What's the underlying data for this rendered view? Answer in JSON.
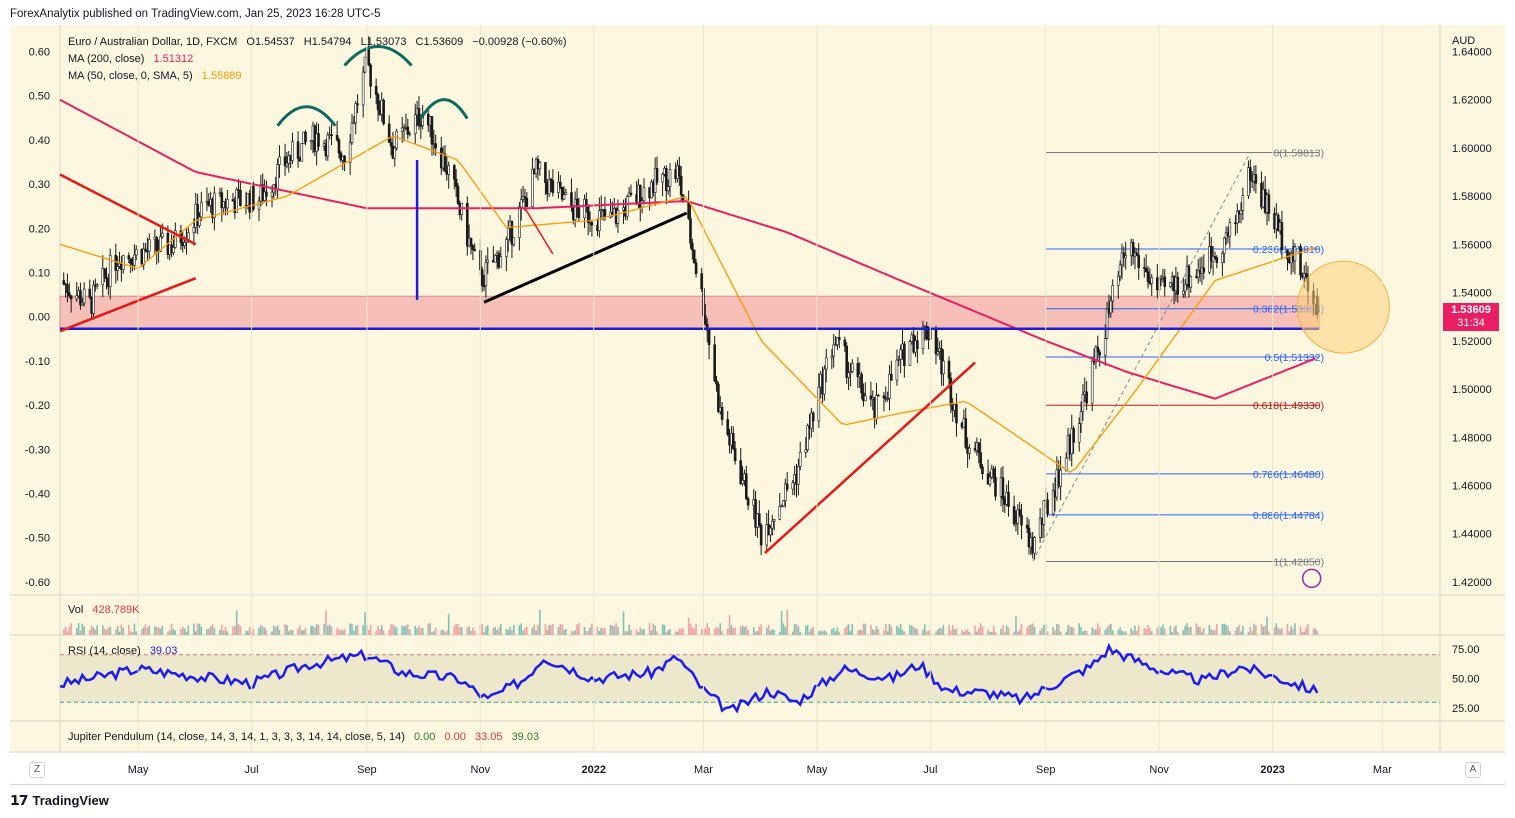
{
  "publisher": "ForexAnalytix published on TradingView.com, Jan 25, 2023 16:28 UTC-5",
  "footer_brand": "TradingView",
  "legend": {
    "symbol": "Euro / Australian Dollar, 1D, FXCM",
    "ohlc": [
      "O1.54537",
      "H1.54794",
      "L1.53073",
      "C1.53609",
      "−0.00928 (−0.60%)"
    ],
    "ma200_label": "MA (200, close)",
    "ma200_value": "1.51312",
    "ma50_label": "MA (50, close, 0, SMA, 5)",
    "ma50_value": "1.55889",
    "vol_label": "Vol",
    "vol_value": "428.789K",
    "rsi_label": "RSI (14, close)",
    "rsi_value": "39.03",
    "jp_label": "Jupiter Pendulum (14, close, 14, 3, 14, 1, 3, 3, 3, 14, 14, close, 5, 14)",
    "jp_values": [
      "0.00",
      "0.00",
      "33.05",
      "39.03"
    ]
  },
  "currency": "AUD",
  "price_tag": "1.53609",
  "countdown": "31:34",
  "left_axis_ticks": [
    "0.60",
    "0.50",
    "0.40",
    "0.30",
    "0.20",
    "0.10",
    "0.00",
    "-0.10",
    "-0.20",
    "-0.30",
    "-0.40",
    "-0.50",
    "-0.60"
  ],
  "right_axis_ticks": [
    "1.64000",
    "1.62000",
    "1.60000",
    "1.58000",
    "1.56000",
    "1.54000",
    "1.52000",
    "1.50000",
    "1.48000",
    "1.46000",
    "1.44000",
    "1.42000"
  ],
  "rsi_ticks": [
    "75.00",
    "50.00",
    "25.00"
  ],
  "x_ticks": [
    "May",
    "Jul",
    "Sep",
    "Nov",
    "2022",
    "Mar",
    "May",
    "Jul",
    "Sep",
    "Nov",
    "2023",
    "Mar"
  ],
  "fib_levels": [
    {
      "label": "0(1.59813)",
      "price": 1.59813,
      "color": "#787b86"
    },
    {
      "label": "0.236(1.55810)",
      "price": 1.5581,
      "color": "#2962ff"
    },
    {
      "label": "0.382(1.53333)",
      "price": 1.53333,
      "color": "#2962ff"
    },
    {
      "label": "0.5(1.51332)",
      "price": 1.51332,
      "color": "#2962ff"
    },
    {
      "label": "0.618(1.49330)",
      "price": 1.4933,
      "color": "#b71c1c"
    },
    {
      "label": "0.786(1.46480)",
      "price": 1.4648,
      "color": "#2962ff"
    },
    {
      "label": "0.886(1.44784)",
      "price": 1.44784,
      "color": "#2962ff"
    },
    {
      "label": "1(1.42850)",
      "price": 1.4285,
      "color": "#787b86"
    }
  ],
  "axis_buttons": {
    "left": "Z",
    "right": "A"
  },
  "colors": {
    "background": "#fcf7de",
    "candles": "#1a1a1a",
    "ma200": "#e91e63",
    "ma50": "#ff9800",
    "rsi": "#1c1cf0",
    "support_line": "#1c1cd9",
    "zone_fill": "#f4a6a6",
    "trendline_red": "#e61919",
    "trendline_black": "#000000",
    "hs_arcs": "#0b6b5f",
    "circle": "#ffd27a"
  },
  "chart_data": {
    "type": "candlestick",
    "title": "Euro / Australian Dollar, 1D, FXCM",
    "x_range": [
      "2021-03-20",
      "2023-04-01"
    ],
    "y_range": [
      1.415,
      1.651
    ],
    "close_path": [
      [
        "2021-03-20",
        1.545
      ],
      [
        "2021-04-05",
        1.535
      ],
      [
        "2021-04-20",
        1.555
      ],
      [
        "2021-05-05",
        1.557
      ],
      [
        "2021-05-20",
        1.56
      ],
      [
        "2021-06-05",
        1.575
      ],
      [
        "2021-06-20",
        1.578
      ],
      [
        "2021-07-05",
        1.579
      ],
      [
        "2021-07-20",
        1.595
      ],
      [
        "2021-08-05",
        1.605
      ],
      [
        "2021-08-20",
        1.598
      ],
      [
        "2021-09-01",
        1.635
      ],
      [
        "2021-09-15",
        1.6
      ],
      [
        "2021-10-01",
        1.615
      ],
      [
        "2021-10-15",
        1.59
      ],
      [
        "2021-11-01",
        1.545
      ],
      [
        "2021-11-15",
        1.56
      ],
      [
        "2021-12-01",
        1.59
      ],
      [
        "2021-12-20",
        1.575
      ],
      [
        "2022-01-10",
        1.57
      ],
      [
        "2022-02-01",
        1.585
      ],
      [
        "2022-02-15",
        1.59
      ],
      [
        "2022-03-01",
        1.535
      ],
      [
        "2022-03-10",
        1.49
      ],
      [
        "2022-04-01",
        1.44
      ],
      [
        "2022-04-20",
        1.465
      ],
      [
        "2022-05-10",
        1.52
      ],
      [
        "2022-06-01",
        1.49
      ],
      [
        "2022-06-20",
        1.52
      ],
      [
        "2022-07-01",
        1.525
      ],
      [
        "2022-07-20",
        1.48
      ],
      [
        "2022-08-10",
        1.455
      ],
      [
        "2022-08-25",
        1.435
      ],
      [
        "2022-09-15",
        1.48
      ],
      [
        "2022-10-01",
        1.52
      ],
      [
        "2022-10-15",
        1.56
      ],
      [
        "2022-11-01",
        1.54
      ],
      [
        "2022-11-20",
        1.548
      ],
      [
        "2022-12-10",
        1.565
      ],
      [
        "2022-12-20",
        1.59
      ],
      [
        "2023-01-05",
        1.565
      ],
      [
        "2023-01-25",
        1.536
      ]
    ],
    "ma200_path": [
      [
        "2021-03-20",
        1.62
      ],
      [
        "2021-06-01",
        1.59
      ],
      [
        "2021-09-01",
        1.575
      ],
      [
        "2021-12-01",
        1.575
      ],
      [
        "2022-02-20",
        1.578
      ],
      [
        "2022-04-15",
        1.565
      ],
      [
        "2022-06-15",
        1.545
      ],
      [
        "2022-09-01",
        1.52
      ],
      [
        "2022-10-15",
        1.507
      ],
      [
        "2022-12-01",
        1.496
      ],
      [
        "2023-01-25",
        1.513
      ]
    ],
    "ma50_path": [
      [
        "2021-03-20",
        1.56
      ],
      [
        "2021-05-01",
        1.55
      ],
      [
        "2021-06-01",
        1.57
      ],
      [
        "2021-07-20",
        1.58
      ],
      [
        "2021-09-15",
        1.605
      ],
      [
        "2021-10-20",
        1.595
      ],
      [
        "2021-11-15",
        1.567
      ],
      [
        "2022-01-01",
        1.57
      ],
      [
        "2022-02-20",
        1.58
      ],
      [
        "2022-04-01",
        1.52
      ],
      [
        "2022-05-15",
        1.485
      ],
      [
        "2022-06-15",
        1.49
      ],
      [
        "2022-07-20",
        1.495
      ],
      [
        "2022-09-15",
        1.465
      ],
      [
        "2022-10-20",
        1.5
      ],
      [
        "2022-12-01",
        1.545
      ],
      [
        "2023-01-25",
        1.559
      ]
    ],
    "rsi_range": [
      15,
      85
    ],
    "rsi_path": [
      [
        "2021-03-20",
        45
      ],
      [
        "2021-05-01",
        58
      ],
      [
        "2021-06-01",
        52
      ],
      [
        "2021-07-01",
        46
      ],
      [
        "2021-08-01",
        62
      ],
      [
        "2021-09-01",
        70
      ],
      [
        "2021-09-20",
        55
      ],
      [
        "2021-10-20",
        50
      ],
      [
        "2021-11-05",
        32
      ],
      [
        "2021-11-25",
        50
      ],
      [
        "2021-12-05",
        68
      ],
      [
        "2022-01-01",
        50
      ],
      [
        "2022-02-01",
        55
      ],
      [
        "2022-02-15",
        68
      ],
      [
        "2022-03-01",
        40
      ],
      [
        "2022-03-15",
        22
      ],
      [
        "2022-04-05",
        40
      ],
      [
        "2022-04-20",
        30
      ],
      [
        "2022-05-15",
        58
      ],
      [
        "2022-06-10",
        50
      ],
      [
        "2022-06-25",
        62
      ],
      [
        "2022-07-10",
        40
      ],
      [
        "2022-08-01",
        38
      ],
      [
        "2022-08-20",
        32
      ],
      [
        "2022-09-05",
        45
      ],
      [
        "2022-09-25",
        60
      ],
      [
        "2022-10-05",
        75
      ],
      [
        "2022-10-20",
        65
      ],
      [
        "2022-11-05",
        55
      ],
      [
        "2022-11-25",
        48
      ],
      [
        "2022-12-15",
        60
      ],
      [
        "2023-01-05",
        50
      ],
      [
        "2023-01-25",
        39
      ]
    ],
    "fib": {
      "high": 1.59813,
      "low": 1.4285,
      "levels": [
        0,
        0.236,
        0.382,
        0.5,
        0.618,
        0.786,
        0.886,
        1
      ]
    },
    "support_level": 1.525,
    "zone": [
      1.525,
      1.5385
    ],
    "overlay_axis_ticks": [
      0.6,
      0.5,
      0.4,
      0.3,
      0.2,
      0.1,
      0.0,
      -0.1,
      -0.2,
      -0.3,
      -0.4,
      -0.5,
      -0.6
    ],
    "price_axis_ticks": [
      1.64,
      1.62,
      1.6,
      1.58,
      1.56,
      1.54,
      1.52,
      1.5,
      1.48,
      1.46,
      1.44,
      1.42
    ],
    "last_price": 1.53609
  }
}
